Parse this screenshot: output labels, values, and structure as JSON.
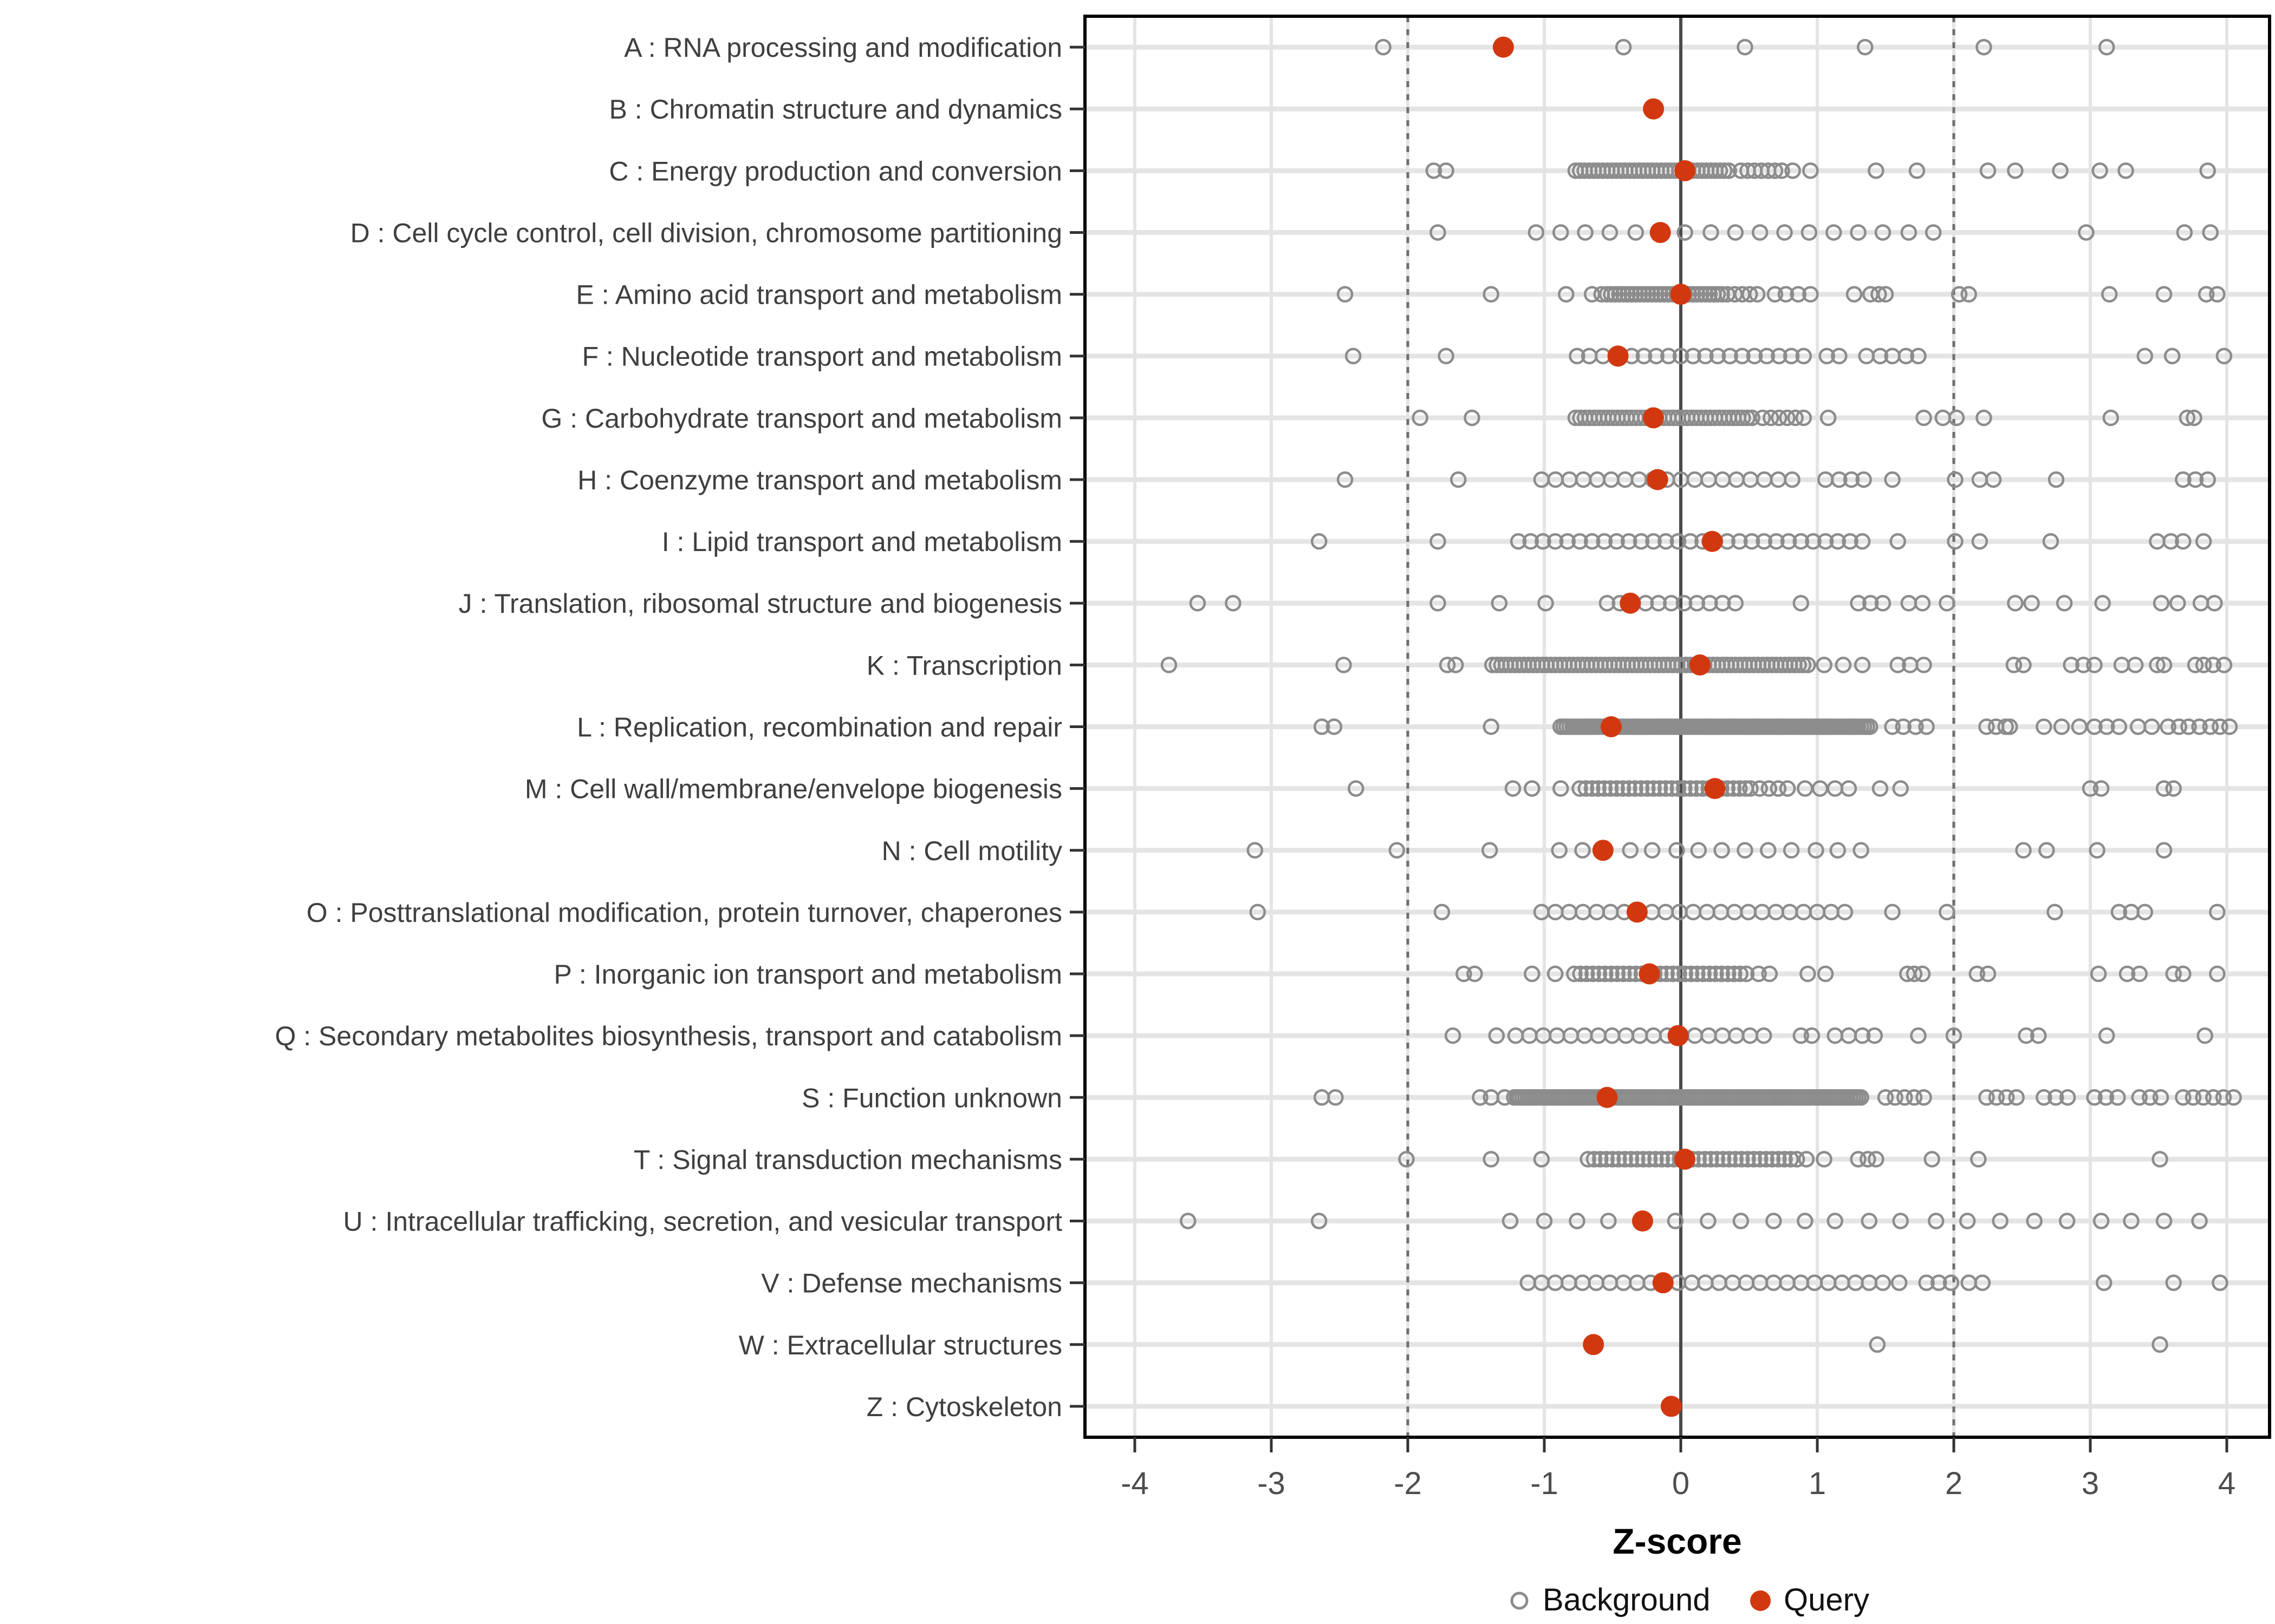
{
  "chart_data": {
    "type": "scatter",
    "title": "",
    "xlabel": "Z-score",
    "x_tick_labels": [
      "-4",
      "-3",
      "-2",
      "-1",
      "0",
      "1",
      "2",
      "3",
      "4"
    ],
    "x_tick_values": [
      -4,
      -3,
      -2,
      -1,
      0,
      1,
      2,
      3,
      4
    ],
    "xlim": [
      -4.37,
      4.32
    ],
    "grid": "major gridlines on (light gray), white panel, black border",
    "reference_lines": {
      "zero_solid": 0,
      "dashed": [
        -2,
        2
      ]
    },
    "legend": {
      "position": "bottom-center",
      "items": [
        {
          "label": "Background",
          "marker": "open-circle",
          "color": "#8C8C8C"
        },
        {
          "label": "Query",
          "marker": "filled-circle",
          "color": "#D23810"
        }
      ]
    },
    "colors": {
      "query_fill": "#D23810",
      "background_stroke": "#8C8C8C",
      "grid_major": "#E4E4E4",
      "zero_line": "#4A4A4A",
      "dashed_line": "#6F6F6F",
      "panel_border": "#000000",
      "axis_text": "#4D4D4D",
      "category_text": "#3F3F3F",
      "axis_title": "#000000"
    },
    "categories": [
      {
        "id": "A",
        "label": "A : RNA processing and modification",
        "query": -1.3,
        "background_points": [
          -2.18,
          -0.42,
          0.47,
          1.35,
          2.22,
          3.12
        ],
        "background_bands": []
      },
      {
        "id": "B",
        "label": "B : Chromatin structure and dynamics",
        "query": -0.2,
        "background_points": [],
        "background_bands": []
      },
      {
        "id": "C",
        "label": "C : Energy production and conversion",
        "query": 0.03,
        "background_points": [
          -1.81,
          -1.72,
          0.82,
          0.95,
          1.43,
          1.73,
          2.25,
          2.45,
          2.78,
          3.07,
          3.26,
          3.86
        ],
        "background_bands": [
          [
            -0.77,
            0.36,
            0.033
          ],
          [
            0.44,
            0.74,
            0.05
          ]
        ]
      },
      {
        "id": "D",
        "label": "D : Cell cycle control, cell division, chromosome partitioning",
        "query": -0.15,
        "background_points": [
          -1.78,
          -1.06,
          -0.88,
          -0.7,
          -0.52,
          -0.33,
          0.03,
          0.22,
          0.4,
          0.58,
          0.76,
          0.94,
          1.12,
          1.3,
          1.48,
          1.67,
          1.85,
          2.97,
          3.69,
          3.88
        ],
        "background_bands": []
      },
      {
        "id": "E",
        "label": "E : Amino acid transport and metabolism",
        "query": 0.0,
        "background_points": [
          -2.46,
          -1.39,
          -0.84,
          -0.65,
          -0.58,
          0.69,
          0.77,
          0.86,
          0.95,
          1.27,
          1.39,
          1.45,
          1.5,
          2.04,
          2.11,
          3.14,
          3.54,
          3.85,
          3.93
        ],
        "background_bands": [
          [
            -0.54,
            0.31,
            0.03
          ],
          [
            0.34,
            0.6,
            0.055
          ]
        ]
      },
      {
        "id": "F",
        "label": "F : Nucleotide transport and metabolism",
        "query": -0.46,
        "background_points": [
          -2.4,
          -1.72,
          -0.76,
          -0.67,
          -0.57,
          1.07,
          1.16,
          1.36,
          1.46,
          1.55,
          1.65,
          1.74,
          3.4,
          3.6,
          3.98
        ],
        "background_bands": [
          [
            -0.36,
            0.91,
            0.09
          ]
        ]
      },
      {
        "id": "G",
        "label": "G : Carbohydrate transport and metabolism",
        "query": -0.2,
        "background_points": [
          -1.91,
          -1.53,
          1.08,
          1.78,
          1.92,
          2.02,
          2.22,
          3.15,
          3.71,
          3.76
        ],
        "background_bands": [
          [
            -0.77,
            0.54,
            0.034
          ],
          [
            0.6,
            0.95,
            0.06
          ]
        ]
      },
      {
        "id": "H",
        "label": "H : Coenzyme transport and metabolism",
        "query": -0.17,
        "background_points": [
          -2.46,
          -1.63,
          1.06,
          1.16,
          1.25,
          1.34,
          1.55,
          2.01,
          2.19,
          2.29,
          2.75,
          3.68,
          3.77,
          3.86
        ],
        "background_bands": [
          [
            -1.02,
            0.85,
            0.102
          ]
        ]
      },
      {
        "id": "I",
        "label": "I : Lipid transport and metabolism",
        "query": 0.23,
        "background_points": [
          -2.65,
          -1.78,
          1.59,
          2.01,
          2.19,
          2.71,
          3.49,
          3.59,
          3.68,
          3.83
        ],
        "background_bands": [
          [
            -1.19,
            1.33,
            0.09
          ]
        ]
      },
      {
        "id": "J",
        "label": "J : Translation, ribosomal structure and biogenesis",
        "query": -0.37,
        "background_points": [
          -3.54,
          -3.28,
          -1.78,
          -1.33,
          -0.99,
          0.88,
          1.3,
          1.39,
          1.48,
          1.67,
          1.77,
          1.95,
          2.45,
          2.57,
          2.81,
          3.09,
          3.52,
          3.64,
          3.81,
          3.91
        ],
        "background_bands": [
          [
            -0.54,
            0.49,
            0.094
          ]
        ]
      },
      {
        "id": "K",
        "label": "K : Transcription",
        "query": 0.14,
        "background_points": [
          -3.75,
          -2.47,
          -1.71,
          -1.65,
          1.05,
          1.19,
          1.33,
          1.59,
          1.68,
          1.78,
          2.44,
          2.51,
          2.86,
          2.95,
          3.03,
          3.23,
          3.33,
          3.49,
          3.54,
          3.77,
          3.83,
          3.9,
          3.98
        ],
        "background_bands": [
          [
            -1.38,
            0.93,
            0.033
          ]
        ]
      },
      {
        "id": "L",
        "label": "L : Replication, recombination and repair",
        "query": -0.51,
        "background_points": [
          -2.63,
          -2.54,
          -1.39,
          1.55,
          1.63,
          1.72,
          1.8,
          2.24,
          2.31,
          2.38,
          2.41,
          2.66,
          2.79,
          2.92,
          3.03,
          3.12,
          3.21,
          3.35,
          3.45,
          3.57,
          3.65,
          3.72,
          3.8,
          3.88,
          3.95,
          4.02
        ],
        "background_bands": [
          [
            -0.88,
            1.4,
            0.022
          ]
        ]
      },
      {
        "id": "M",
        "label": "M : Cell wall/membrane/envelope biogenesis",
        "query": 0.25,
        "background_points": [
          -2.38,
          -1.23,
          -1.09,
          -0.88,
          0.91,
          1.02,
          1.13,
          1.23,
          1.46,
          1.61,
          3.0,
          3.08,
          3.54,
          3.61
        ],
        "background_bands": [
          [
            -0.74,
            0.48,
            0.045
          ],
          [
            0.51,
            0.79,
            0.068
          ]
        ]
      },
      {
        "id": "N",
        "label": "N : Cell motility",
        "query": -0.57,
        "background_points": [
          -3.12,
          -2.08,
          -1.4,
          -0.89,
          -0.72,
          -0.37,
          -0.21,
          -0.03,
          0.13,
          0.3,
          0.47,
          0.64,
          0.81,
          0.99,
          1.15,
          1.32,
          2.51,
          2.68,
          3.05,
          3.54
        ],
        "background_bands": []
      },
      {
        "id": "O",
        "label": "O : Posttranslational modification, protein turnover, chaperones",
        "query": -0.32,
        "background_points": [
          -3.1,
          -1.75,
          1.55,
          1.95,
          2.74,
          3.21,
          3.3,
          3.4,
          3.93
        ],
        "background_bands": [
          [
            -1.02,
            1.21,
            0.101
          ]
        ]
      },
      {
        "id": "P",
        "label": "P : Inorganic ion transport and metabolism",
        "query": -0.23,
        "background_points": [
          -1.59,
          -1.51,
          -1.09,
          -0.92,
          0.57,
          0.65,
          0.93,
          1.06,
          1.66,
          1.71,
          1.77,
          2.17,
          2.25,
          3.06,
          3.27,
          3.36,
          3.61,
          3.68,
          3.93
        ],
        "background_bands": [
          [
            -0.78,
            0.48,
            0.045
          ]
        ]
      },
      {
        "id": "Q",
        "label": "Q : Secondary metabolites biosynthesis, transport and catabolism",
        "query": -0.02,
        "background_points": [
          -1.67,
          -1.35,
          0.88,
          0.96,
          1.13,
          1.23,
          1.33,
          1.42,
          1.74,
          2.0,
          2.53,
          2.62,
          3.12,
          3.84
        ],
        "background_bands": [
          [
            -1.21,
            0.66,
            0.101
          ]
        ]
      },
      {
        "id": "S",
        "label": "S : Function unknown",
        "query": -0.54,
        "background_points": [
          -2.63,
          -2.53,
          -1.47,
          -1.39,
          -1.29
        ],
        "background_bands": [
          [
            -1.22,
            1.33,
            0.02
          ],
          [
            1.5,
            1.78,
            0.07
          ],
          [
            2.24,
            2.46,
            0.073
          ],
          [
            2.66,
            2.92,
            0.087
          ],
          [
            3.03,
            3.2,
            0.085
          ],
          [
            3.36,
            3.59,
            0.078
          ],
          [
            3.68,
            4.05,
            0.074
          ]
        ]
      },
      {
        "id": "T",
        "label": "T : Signal transduction mechanisms",
        "query": 0.03,
        "background_points": [
          -2.01,
          -1.39,
          -1.02,
          0.92,
          1.05,
          1.3,
          1.37,
          1.43,
          1.84,
          2.18,
          3.51
        ],
        "background_bands": [
          [
            -0.68,
            0.88,
            0.045
          ]
        ]
      },
      {
        "id": "U",
        "label": "U : Intracellular trafficking, secretion, and vesicular transport",
        "query": -0.28,
        "background_points": [
          -3.61,
          -2.65,
          -1.25,
          -1.0,
          -0.76,
          -0.53,
          -0.04,
          0.2,
          0.44,
          0.68,
          0.91,
          1.13,
          1.38,
          1.61,
          1.87,
          2.1,
          2.34,
          2.59,
          2.83,
          3.08,
          3.3,
          3.54,
          3.8
        ],
        "background_bands": []
      },
      {
        "id": "V",
        "label": "V : Defense mechanisms",
        "query": -0.13,
        "background_points": [
          1.6,
          1.8,
          1.89,
          1.98,
          2.11,
          2.21,
          3.1,
          3.61,
          3.95
        ],
        "background_bands": [
          [
            -1.12,
            1.48,
            0.1
          ]
        ]
      },
      {
        "id": "W",
        "label": "W : Extracellular structures",
        "query": -0.64,
        "background_points": [
          1.44,
          3.51
        ],
        "background_bands": []
      },
      {
        "id": "Z",
        "label": "Z : Cytoskeleton",
        "query": -0.07,
        "background_points": [],
        "background_bands": []
      }
    ]
  }
}
